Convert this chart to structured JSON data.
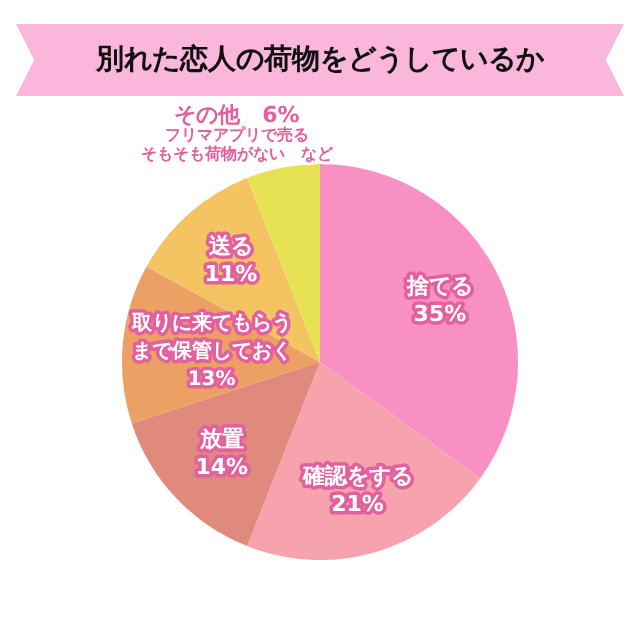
{
  "chart_data": {
    "type": "pie",
    "title": "別れた恋人の荷物をどうしているか",
    "categories": [
      "捨てる",
      "確認をする",
      "放置",
      "取りに来てもらうまで保管しておく",
      "送る",
      "その他"
    ],
    "values": [
      35,
      21,
      14,
      13,
      11,
      6
    ],
    "value_labels": [
      "35%",
      "21%",
      "14%",
      "13%",
      "11%",
      "6%"
    ],
    "colors": [
      "#f990c4",
      "#f7a3ae",
      "#df8a7c",
      "#eca064",
      "#f4c462",
      "#e6e254"
    ],
    "annotations": [
      "フリマアプリで売る",
      "そもそも荷物がない　など"
    ],
    "legend": false
  }
}
